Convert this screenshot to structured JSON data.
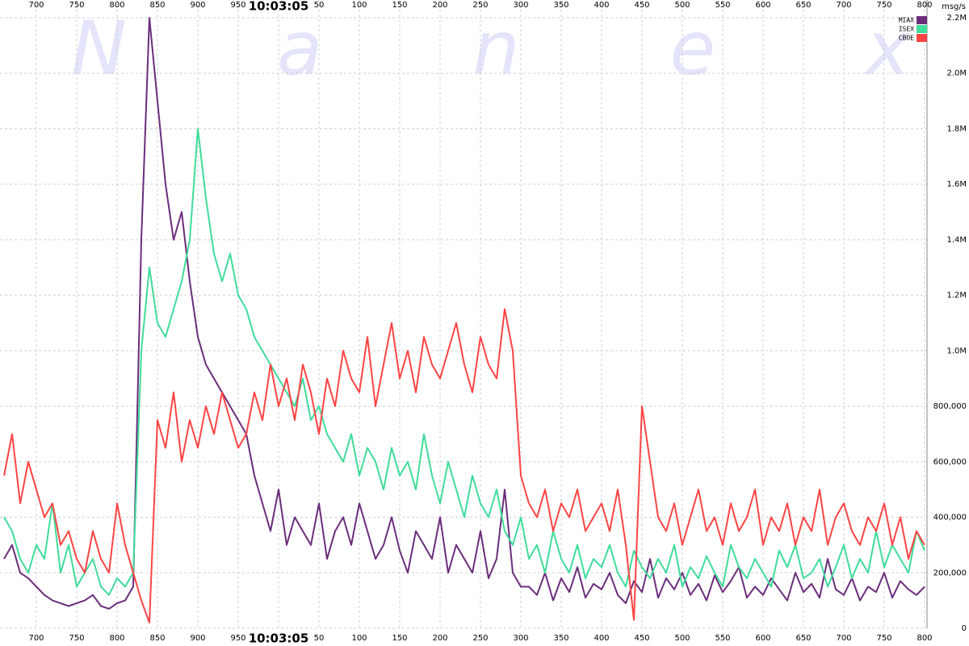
{
  "chart_data": {
    "type": "line",
    "watermark": "Nanex",
    "y_label": "msg/s",
    "xlim": [
      655,
      1803
    ],
    "xticks": [
      700,
      750,
      800,
      850,
      900,
      950,
      {
        "value": 1000,
        "label": "10:03:05"
      },
      {
        "value": 1050,
        "label": "50"
      },
      {
        "value": 1100,
        "label": "100"
      },
      {
        "value": 1150,
        "label": "150"
      },
      {
        "value": 1200,
        "label": "200"
      },
      {
        "value": 1250,
        "label": "250"
      },
      {
        "value": 1300,
        "label": "300"
      },
      {
        "value": 1350,
        "label": "350"
      },
      {
        "value": 1400,
        "label": "400"
      },
      {
        "value": 1450,
        "label": "450"
      },
      {
        "value": 1500,
        "label": "500"
      },
      {
        "value": 1550,
        "label": "550"
      },
      {
        "value": 1600,
        "label": "600"
      },
      {
        "value": 1650,
        "label": "650"
      },
      {
        "value": 1700,
        "label": "700"
      },
      {
        "value": 1750,
        "label": "750"
      },
      {
        "value": 1800,
        "label": "800"
      }
    ],
    "ylim": [
      0,
      2264000
    ],
    "yticks": [
      0,
      {
        "value": 200000,
        "label": "200,000"
      },
      {
        "value": 400000,
        "label": "400,000"
      },
      {
        "value": 600000,
        "label": "600,000"
      },
      {
        "value": 800000,
        "label": "800,000"
      },
      {
        "value": 1000000,
        "label": "1.0M"
      },
      {
        "value": 1200000,
        "label": "1.2M"
      },
      {
        "value": 1400000,
        "label": "1.4M"
      },
      {
        "value": 1600000,
        "label": "1.6M"
      },
      {
        "value": 1800000,
        "label": "1.8M"
      },
      {
        "value": 2000000,
        "label": "2.0M"
      },
      {
        "value": 2200000,
        "label": "2.2M"
      }
    ],
    "grid": true,
    "legend": "top-right",
    "x": [
      660,
      670,
      680,
      690,
      700,
      710,
      720,
      730,
      740,
      750,
      760,
      770,
      780,
      790,
      800,
      810,
      820,
      830,
      840,
      850,
      860,
      870,
      880,
      890,
      900,
      910,
      920,
      930,
      940,
      950,
      960,
      970,
      980,
      990,
      1000,
      1010,
      1020,
      1030,
      1040,
      1050,
      1060,
      1070,
      1080,
      1090,
      1100,
      1110,
      1120,
      1130,
      1140,
      1150,
      1160,
      1170,
      1180,
      1190,
      1200,
      1210,
      1220,
      1230,
      1240,
      1250,
      1260,
      1270,
      1280,
      1290,
      1300,
      1310,
      1320,
      1330,
      1340,
      1350,
      1360,
      1370,
      1380,
      1390,
      1400,
      1410,
      1420,
      1430,
      1440,
      1450,
      1460,
      1470,
      1480,
      1490,
      1500,
      1510,
      1520,
      1530,
      1540,
      1550,
      1560,
      1570,
      1580,
      1590,
      1600,
      1610,
      1620,
      1630,
      1640,
      1650,
      1660,
      1670,
      1680,
      1690,
      1700,
      1710,
      1720,
      1730,
      1740,
      1750,
      1760,
      1770,
      1780,
      1790,
      1800
    ],
    "series": [
      {
        "name": "MIAX",
        "color": "#6b2d7b",
        "values": [
          250000,
          300000,
          200000,
          180000,
          150000,
          120000,
          100000,
          90000,
          80000,
          90000,
          100000,
          120000,
          80000,
          70000,
          90000,
          100000,
          150000,
          1400000,
          2200000,
          1900000,
          1600000,
          1400000,
          1500000,
          1250000,
          1050000,
          950000,
          900000,
          850000,
          800000,
          750000,
          700000,
          550000,
          450000,
          350000,
          500000,
          300000,
          400000,
          350000,
          300000,
          450000,
          250000,
          350000,
          400000,
          300000,
          450000,
          350000,
          250000,
          300000,
          400000,
          280000,
          200000,
          350000,
          300000,
          250000,
          400000,
          200000,
          300000,
          250000,
          200000,
          350000,
          180000,
          250000,
          500000,
          200000,
          150000,
          150000,
          120000,
          200000,
          100000,
          180000,
          130000,
          220000,
          110000,
          160000,
          140000,
          200000,
          120000,
          90000,
          170000,
          130000,
          250000,
          110000,
          180000,
          140000,
          200000,
          120000,
          160000,
          100000,
          190000,
          130000,
          170000,
          220000,
          110000,
          150000,
          120000,
          180000,
          140000,
          100000,
          200000,
          130000,
          160000,
          110000,
          250000,
          140000,
          120000,
          180000,
          100000,
          150000,
          130000,
          200000,
          110000,
          170000,
          140000,
          120000,
          150000
        ]
      },
      {
        "name": "ISEX",
        "color": "#3fdc9a",
        "values": [
          400000,
          350000,
          250000,
          200000,
          300000,
          250000,
          450000,
          200000,
          300000,
          150000,
          200000,
          250000,
          150000,
          120000,
          180000,
          150000,
          200000,
          1000000,
          1300000,
          1100000,
          1050000,
          1150000,
          1250000,
          1400000,
          1800000,
          1550000,
          1350000,
          1250000,
          1350000,
          1200000,
          1150000,
          1050000,
          1000000,
          950000,
          900000,
          850000,
          800000,
          900000,
          750000,
          800000,
          700000,
          650000,
          600000,
          700000,
          550000,
          650000,
          600000,
          500000,
          650000,
          550000,
          600000,
          500000,
          700000,
          550000,
          450000,
          600000,
          500000,
          400000,
          550000,
          450000,
          400000,
          500000,
          350000,
          300000,
          400000,
          250000,
          300000,
          200000,
          350000,
          250000,
          200000,
          300000,
          180000,
          250000,
          220000,
          300000,
          200000,
          150000,
          280000,
          220000,
          180000,
          250000,
          200000,
          300000,
          150000,
          220000,
          180000,
          260000,
          200000,
          150000,
          300000,
          220000,
          180000,
          250000,
          200000,
          150000,
          280000,
          220000,
          300000,
          180000,
          200000,
          250000,
          150000,
          220000,
          300000,
          180000,
          250000,
          200000,
          350000,
          220000,
          300000,
          250000,
          200000,
          350000,
          280000
        ]
      },
      {
        "name": "CBOE",
        "color": "#ff4444",
        "values": [
          550000,
          700000,
          450000,
          600000,
          500000,
          400000,
          450000,
          300000,
          350000,
          250000,
          200000,
          350000,
          250000,
          200000,
          450000,
          300000,
          200000,
          100000,
          20000,
          750000,
          650000,
          850000,
          600000,
          750000,
          650000,
          800000,
          700000,
          850000,
          750000,
          650000,
          700000,
          850000,
          750000,
          950000,
          800000,
          900000,
          750000,
          950000,
          850000,
          700000,
          900000,
          800000,
          1000000,
          900000,
          850000,
          1050000,
          800000,
          950000,
          1100000,
          900000,
          1000000,
          850000,
          1050000,
          950000,
          900000,
          1000000,
          1100000,
          950000,
          850000,
          1050000,
          950000,
          900000,
          1150000,
          1000000,
          550000,
          450000,
          400000,
          500000,
          350000,
          450000,
          400000,
          500000,
          350000,
          400000,
          450000,
          350000,
          500000,
          300000,
          30000,
          800000,
          600000,
          400000,
          350000,
          450000,
          300000,
          400000,
          500000,
          350000,
          400000,
          300000,
          450000,
          350000,
          400000,
          500000,
          300000,
          400000,
          350000,
          450000,
          300000,
          400000,
          350000,
          500000,
          300000,
          400000,
          450000,
          350000,
          300000,
          400000,
          350000,
          450000,
          300000,
          400000,
          250000,
          350000,
          300000
        ]
      }
    ]
  }
}
